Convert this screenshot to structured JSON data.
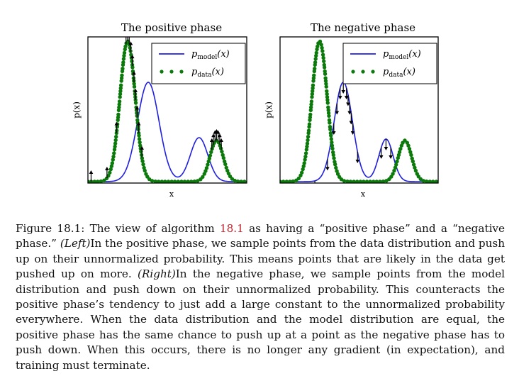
{
  "figure": {
    "panels": [
      {
        "title": "The positive phase",
        "xlabel": "x",
        "ylabel": "p(x)",
        "legend": {
          "model_label": "p",
          "model_sub": "model",
          "data_label": "p",
          "data_sub": "data",
          "arg": "(x)",
          "placement": "top-right"
        }
      },
      {
        "title": "The negative phase",
        "xlabel": "x",
        "ylabel": "p(x)",
        "legend": {
          "model_label": "p",
          "model_sub": "model",
          "data_label": "p",
          "data_sub": "data",
          "arg": "(x)",
          "placement": "top-right"
        }
      }
    ],
    "colors": {
      "model": "#1f1fe0",
      "data": "#0b7a0b",
      "arrow": "#000000"
    }
  },
  "chart_data": [
    {
      "type": "line",
      "title": "The positive phase",
      "xlabel": "x",
      "ylabel": "p(x)",
      "xlim": [
        0,
        1
      ],
      "ylim": [
        0,
        1
      ],
      "grid": false,
      "legend_placement": "top-right",
      "series": [
        {
          "name": "p_model(x)",
          "style": "solid-line",
          "components": [
            {
              "mean": 0.38,
              "sd": 0.068,
              "height": 0.7
            },
            {
              "mean": 0.7,
              "sd": 0.055,
              "height": 0.31
            }
          ]
        },
        {
          "name": "p_data(x)",
          "style": "dotted",
          "components": [
            {
              "mean": 0.25,
              "sd": 0.048,
              "height": 0.99
            },
            {
              "mean": 0.81,
              "sd": 0.042,
              "height": 0.29
            }
          ]
        }
      ],
      "arrows": {
        "direction": "up",
        "samples_from": "data",
        "x": [
          0.02,
          0.12,
          0.18,
          0.24,
          0.25,
          0.26,
          0.27,
          0.28,
          0.29,
          0.3,
          0.31,
          0.32,
          0.34,
          0.78,
          0.79,
          0.8,
          0.81,
          0.82,
          0.83,
          0.84
        ]
      }
    },
    {
      "type": "line",
      "title": "The negative phase",
      "xlabel": "x",
      "ylabel": "p(x)",
      "xlim": [
        0,
        1
      ],
      "ylim": [
        0,
        1
      ],
      "grid": false,
      "legend_placement": "top-right",
      "series": [
        {
          "name": "p_model(x)",
          "style": "solid-line",
          "components": [
            {
              "mean": 0.4,
              "sd": 0.058,
              "height": 0.7
            },
            {
              "mean": 0.67,
              "sd": 0.045,
              "height": 0.3
            }
          ]
        },
        {
          "name": "p_data(x)",
          "style": "dotted",
          "components": [
            {
              "mean": 0.25,
              "sd": 0.048,
              "height": 0.99
            },
            {
              "mean": 0.79,
              "sd": 0.042,
              "height": 0.29
            }
          ]
        }
      ],
      "arrows": {
        "direction": "down",
        "samples_from": "model",
        "x": [
          0.22,
          0.3,
          0.34,
          0.36,
          0.38,
          0.4,
          0.42,
          0.43,
          0.44,
          0.45,
          0.46,
          0.49,
          0.64,
          0.67,
          0.7
        ]
      }
    }
  ],
  "caption": {
    "lead": "Figure 18.1: The view of algorithm ",
    "ref": "18.1",
    "part1": " as having a “positive phase” and a “negative phase.” ",
    "left_label": "(Left)",
    "part2": "In the positive phase, we sample points from the data distribution and push up on their unnormalized probability. This means points that are likely in the data get pushed up on more. ",
    "right_label": "(Right)",
    "part3": "In the negative phase, we sample points from the model distribution and push down on their unnormalized probability. This counteracts the positive phase’s tendency to just add a large constant to the unnormalized probability everywhere. When the data distribution and the model distribution are equal, the positive phase has the same chance to push up at a point as the negative phase has to push down. When this occurs, there is no longer any gradient (in expectation), and training must terminate."
  }
}
